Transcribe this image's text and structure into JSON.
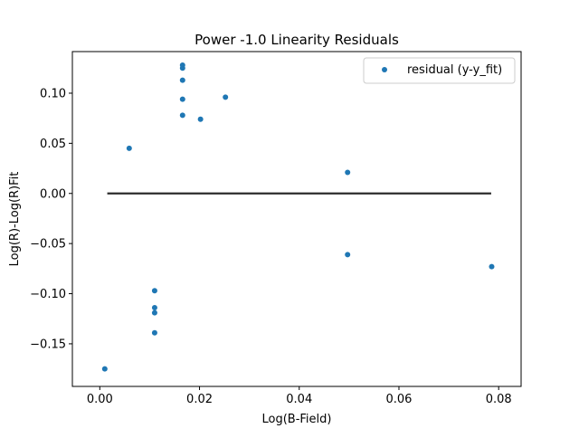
{
  "chart_data": {
    "type": "scatter",
    "title": "Power -1.0 Linearity Residuals",
    "xlabel": "Log(B-Field)",
    "ylabel": "Log(R)-Log(R)Fit",
    "xlim": [
      -0.0055,
      0.0845
    ],
    "ylim": [
      -0.1925,
      0.1415
    ],
    "xticks": [
      0.0,
      0.02,
      0.04,
      0.06,
      0.08
    ],
    "xtick_labels": [
      "0.00",
      "0.02",
      "0.04",
      "0.06",
      "0.08"
    ],
    "yticks": [
      -0.15,
      -0.1,
      -0.05,
      0.0,
      0.05,
      0.1
    ],
    "ytick_labels": [
      "−0.15",
      "−0.10",
      "−0.05",
      "0.00",
      "0.05",
      "0.10"
    ],
    "grid": false,
    "legend_position": "upper right",
    "series": [
      {
        "name": "residual (y-y_fit)",
        "color": "#1f77b4",
        "marker": "circle",
        "points": [
          {
            "x": 0.001,
            "y": -0.175
          },
          {
            "x": 0.0059,
            "y": 0.045
          },
          {
            "x": 0.011,
            "y": -0.097
          },
          {
            "x": 0.011,
            "y": -0.114
          },
          {
            "x": 0.011,
            "y": -0.119
          },
          {
            "x": 0.011,
            "y": -0.139
          },
          {
            "x": 0.0166,
            "y": 0.128
          },
          {
            "x": 0.0166,
            "y": 0.125
          },
          {
            "x": 0.0166,
            "y": 0.113
          },
          {
            "x": 0.0166,
            "y": 0.094
          },
          {
            "x": 0.0166,
            "y": 0.078
          },
          {
            "x": 0.0202,
            "y": 0.074
          },
          {
            "x": 0.0252,
            "y": 0.096
          },
          {
            "x": 0.0497,
            "y": 0.021
          },
          {
            "x": 0.0497,
            "y": -0.061
          },
          {
            "x": 0.0786,
            "y": -0.073
          }
        ]
      }
    ],
    "reference_line": {
      "color": "#2b2b2b",
      "x": [
        0.0015,
        0.0785
      ],
      "y": [
        0.0,
        0.0
      ]
    }
  }
}
